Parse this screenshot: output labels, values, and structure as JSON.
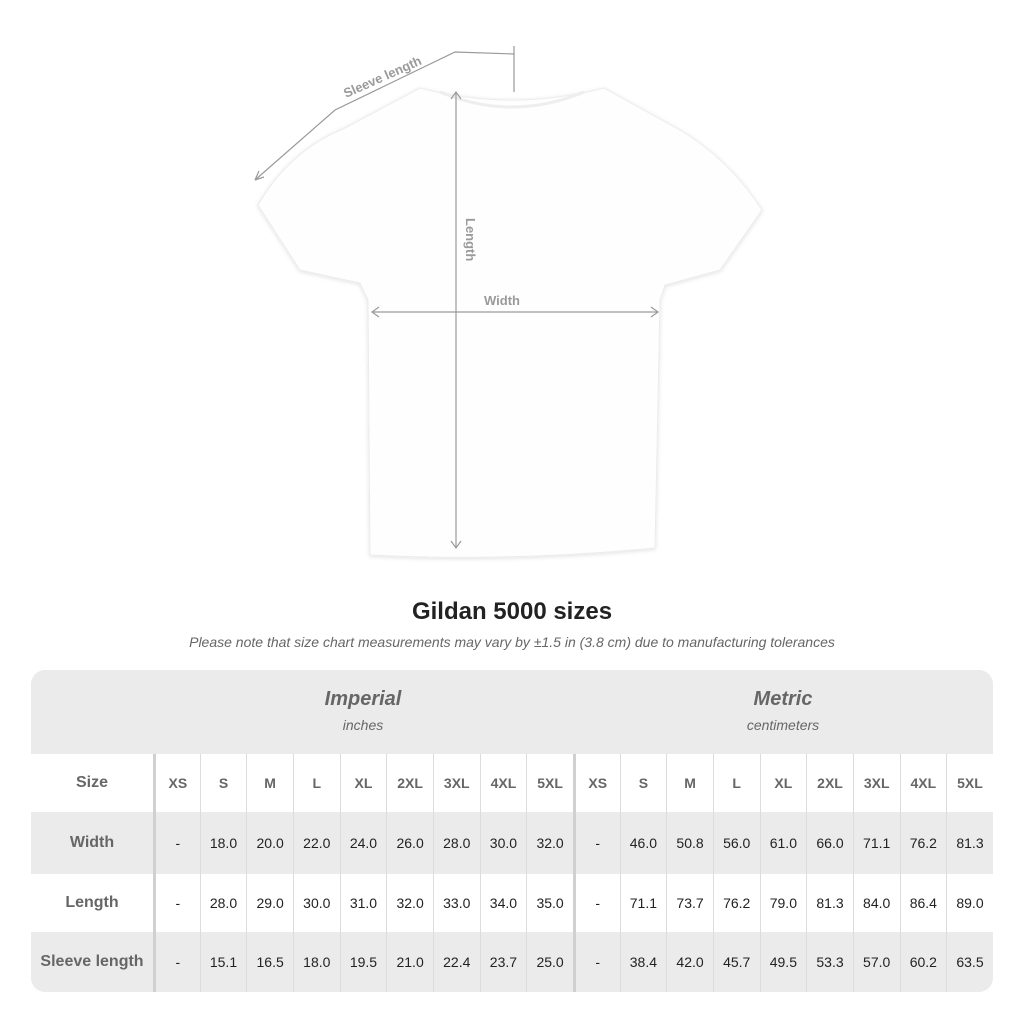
{
  "diagram": {
    "sleeve_label": "Sleeve length",
    "length_label": "Length",
    "width_label": "Width"
  },
  "title": "Gildan 5000 sizes",
  "note": "Please note that size chart measurements may vary by ±1.5 in (3.8 cm) due to manufacturing tolerances",
  "table": {
    "imperial": {
      "name": "Imperial",
      "unit": "inches"
    },
    "metric": {
      "name": "Metric",
      "unit": "centimeters"
    },
    "size_label": "Size",
    "sizes": [
      "XS",
      "S",
      "M",
      "L",
      "XL",
      "2XL",
      "3XL",
      "4XL",
      "5XL"
    ],
    "rows": [
      {
        "label": "Width",
        "imperial": [
          "-",
          "18.0",
          "20.0",
          "22.0",
          "24.0",
          "26.0",
          "28.0",
          "30.0",
          "32.0"
        ],
        "metric": [
          "-",
          "46.0",
          "50.8",
          "56.0",
          "61.0",
          "66.0",
          "71.1",
          "76.2",
          "81.3"
        ]
      },
      {
        "label": "Length",
        "imperial": [
          "-",
          "28.0",
          "29.0",
          "30.0",
          "31.0",
          "32.0",
          "33.0",
          "34.0",
          "35.0"
        ],
        "metric": [
          "-",
          "71.1",
          "73.7",
          "76.2",
          "79.0",
          "81.3",
          "84.0",
          "86.4",
          "89.0"
        ]
      },
      {
        "label": "Sleeve length",
        "imperial": [
          "-",
          "15.1",
          "16.5",
          "18.0",
          "19.5",
          "21.0",
          "22.4",
          "23.7",
          "25.0"
        ],
        "metric": [
          "-",
          "38.4",
          "42.0",
          "45.7",
          "49.5",
          "53.3",
          "57.0",
          "60.2",
          "63.5"
        ]
      }
    ]
  },
  "colors": {
    "header_bg": "#ebebeb",
    "label_text": "#666666",
    "arrow": "#9a9a9a"
  }
}
